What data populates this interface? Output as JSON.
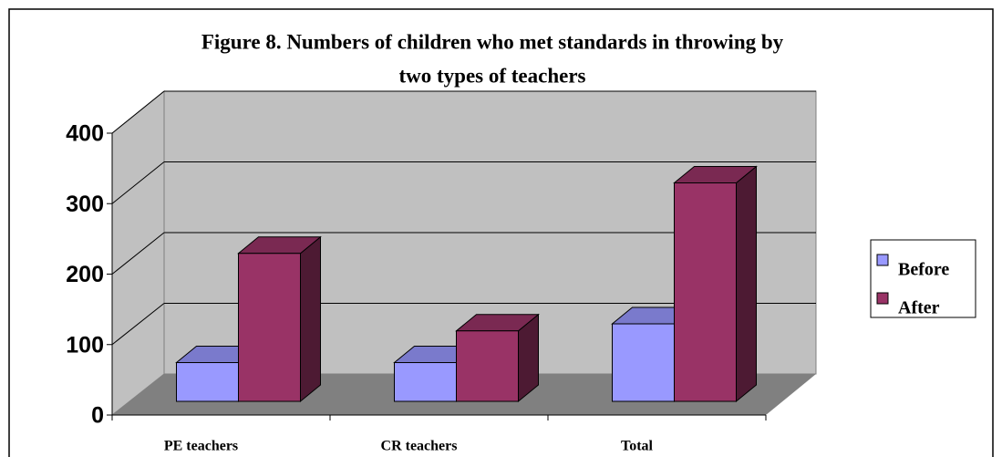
{
  "chart_data": {
    "type": "bar3d",
    "title": [
      "Figure 8. Numbers of children who met standards in throwing by",
      "two types of teachers"
    ],
    "categories": [
      "PE teachers",
      "CR teachers",
      "Total"
    ],
    "series": [
      {
        "name": "Before",
        "color": "#9999ff",
        "values": [
          55,
          55,
          110
        ]
      },
      {
        "name": "After",
        "color": "#993366",
        "values": [
          210,
          100,
          310
        ]
      }
    ],
    "ylim": [
      0,
      400
    ],
    "yticks": [
      0,
      100,
      200,
      300,
      400
    ],
    "grid": true,
    "legend": "right"
  }
}
